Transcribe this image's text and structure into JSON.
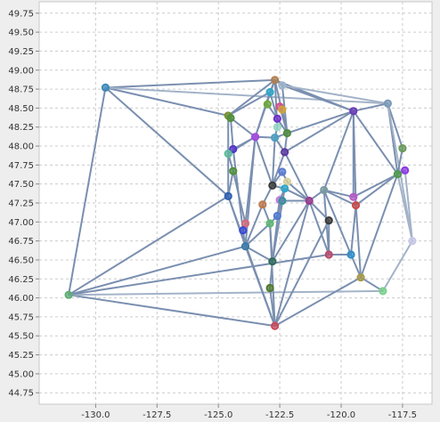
{
  "chart_data": {
    "type": "scatter",
    "title": "",
    "xlabel": "",
    "ylabel": "",
    "xlim": [
      -132.3,
      -116.3
    ],
    "ylim": [
      44.6,
      49.9
    ],
    "x_ticks": [
      -130.0,
      -127.5,
      -125.0,
      -122.5,
      -120.0,
      -117.5
    ],
    "x_tick_labels": [
      "-130.0",
      "-127.5",
      "-125.0",
      "-122.5",
      "-120.0",
      "-117.5"
    ],
    "y_ticks": [
      49.75,
      49.5,
      49.25,
      49.0,
      48.75,
      48.5,
      48.25,
      48.0,
      47.75,
      47.5,
      47.25,
      47.0,
      46.75,
      46.5,
      46.25,
      46.0,
      45.75,
      45.5,
      45.25,
      45.0,
      44.75
    ],
    "y_tick_labels": [
      "49.75",
      "49.50",
      "49.25",
      "49.00",
      "48.75",
      "48.50",
      "48.25",
      "48.00",
      "47.75",
      "47.50",
      "47.25",
      "47.00",
      "46.75",
      "46.50",
      "46.25",
      "46.00",
      "45.75",
      "45.50",
      "45.25",
      "45.00",
      "44.75"
    ],
    "grid": true,
    "plot_background": "#ffffff",
    "page_background": "#eeeeee",
    "edge_color": "#7a8fb0",
    "edge_color_light": "#a3b3c8",
    "points": [
      {
        "x": -129.6,
        "y": 48.77,
        "color": "#3b88b8"
      },
      {
        "x": -131.1,
        "y": 46.04,
        "color": "#5fae74"
      },
      {
        "x": -122.7,
        "y": 48.87,
        "color": "#b07f4e"
      },
      {
        "x": -122.4,
        "y": 48.8,
        "color": "#9cb4cc"
      },
      {
        "x": -122.9,
        "y": 48.71,
        "color": "#2fa6c7"
      },
      {
        "x": -123.0,
        "y": 48.55,
        "color": "#6fa838"
      },
      {
        "x": -122.5,
        "y": 48.52,
        "color": "#d24f8f"
      },
      {
        "x": -122.4,
        "y": 48.48,
        "color": "#d0a33a"
      },
      {
        "x": -122.6,
        "y": 48.36,
        "color": "#6e2fc8"
      },
      {
        "x": -122.6,
        "y": 48.25,
        "color": "#97d8c5"
      },
      {
        "x": -122.2,
        "y": 48.17,
        "color": "#4f8a3d"
      },
      {
        "x": -122.7,
        "y": 48.11,
        "color": "#4da0c2"
      },
      {
        "x": -123.5,
        "y": 48.12,
        "color": "#a545e0"
      },
      {
        "x": -124.6,
        "y": 48.4,
        "color": "#7b8f2e"
      },
      {
        "x": -124.5,
        "y": 48.37,
        "color": "#4f8f3b"
      },
      {
        "x": -124.4,
        "y": 47.96,
        "color": "#5434c8"
      },
      {
        "x": -124.6,
        "y": 47.9,
        "color": "#5dba9c"
      },
      {
        "x": -124.4,
        "y": 47.67,
        "color": "#4f8f3b"
      },
      {
        "x": -124.6,
        "y": 47.34,
        "color": "#2f5fb0"
      },
      {
        "x": -122.3,
        "y": 47.92,
        "color": "#5c3aa0"
      },
      {
        "x": -122.4,
        "y": 47.66,
        "color": "#5a7bd0"
      },
      {
        "x": -122.2,
        "y": 47.53,
        "color": "#d8d09a"
      },
      {
        "x": -122.8,
        "y": 47.48,
        "color": "#3a3a3a"
      },
      {
        "x": -122.3,
        "y": 47.44,
        "color": "#2fa6c7"
      },
      {
        "x": -122.5,
        "y": 47.29,
        "color": "#c07ae0"
      },
      {
        "x": -122.4,
        "y": 47.28,
        "color": "#3a8f9a"
      },
      {
        "x": -121.3,
        "y": 47.28,
        "color": "#9a3a8f"
      },
      {
        "x": -123.2,
        "y": 47.23,
        "color": "#c07a4e"
      },
      {
        "x": -122.6,
        "y": 47.08,
        "color": "#4f7ad0"
      },
      {
        "x": -122.9,
        "y": 46.98,
        "color": "#5fb874"
      },
      {
        "x": -123.9,
        "y": 46.98,
        "color": "#d46a7a"
      },
      {
        "x": -124.0,
        "y": 46.89,
        "color": "#3a4ad0"
      },
      {
        "x": -123.9,
        "y": 46.68,
        "color": "#3a7aa8"
      },
      {
        "x": -120.5,
        "y": 47.02,
        "color": "#3a3a3a"
      },
      {
        "x": -120.7,
        "y": 47.42,
        "color": "#7a9aa0"
      },
      {
        "x": -119.5,
        "y": 47.33,
        "color": "#b85ac8"
      },
      {
        "x": -119.4,
        "y": 47.22,
        "color": "#c84a4a"
      },
      {
        "x": -120.5,
        "y": 46.57,
        "color": "#b84a6a"
      },
      {
        "x": -119.6,
        "y": 46.57,
        "color": "#2f8fc8"
      },
      {
        "x": -119.2,
        "y": 46.27,
        "color": "#a89a4a"
      },
      {
        "x": -119.5,
        "y": 48.46,
        "color": "#6a3ab8"
      },
      {
        "x": -118.1,
        "y": 48.56,
        "color": "#7a9ab8"
      },
      {
        "x": -117.5,
        "y": 47.97,
        "color": "#6a9a5a"
      },
      {
        "x": -117.7,
        "y": 47.63,
        "color": "#4f9a4a"
      },
      {
        "x": -117.4,
        "y": 47.68,
        "color": "#8a3ae0"
      },
      {
        "x": -117.1,
        "y": 46.75,
        "color": "#c8c8e8"
      },
      {
        "x": -118.3,
        "y": 46.09,
        "color": "#7ad08a"
      },
      {
        "x": -122.8,
        "y": 46.48,
        "color": "#2f6a5a"
      },
      {
        "x": -122.9,
        "y": 46.13,
        "color": "#4f7a2e"
      },
      {
        "x": -122.7,
        "y": 45.63,
        "color": "#c84a5a"
      }
    ],
    "edges": [
      [
        0,
        1
      ],
      [
        0,
        2
      ],
      [
        0,
        13
      ],
      [
        0,
        18
      ],
      [
        0,
        41
      ],
      [
        1,
        18
      ],
      [
        1,
        32
      ],
      [
        1,
        49
      ],
      [
        1,
        46
      ],
      [
        1,
        37
      ],
      [
        2,
        3
      ],
      [
        2,
        4
      ],
      [
        2,
        12
      ],
      [
        2,
        13
      ],
      [
        2,
        10
      ],
      [
        2,
        40
      ],
      [
        3,
        40
      ],
      [
        3,
        41
      ],
      [
        3,
        10
      ],
      [
        4,
        13
      ],
      [
        4,
        8
      ],
      [
        4,
        12
      ],
      [
        13,
        14
      ],
      [
        14,
        12
      ],
      [
        14,
        15
      ],
      [
        13,
        16
      ],
      [
        16,
        17
      ],
      [
        16,
        18
      ],
      [
        17,
        18
      ],
      [
        15,
        12
      ],
      [
        12,
        11
      ],
      [
        12,
        22
      ],
      [
        12,
        30
      ],
      [
        12,
        32
      ],
      [
        11,
        19
      ],
      [
        11,
        22
      ],
      [
        11,
        10
      ],
      [
        10,
        19
      ],
      [
        10,
        40
      ],
      [
        19,
        40
      ],
      [
        19,
        26
      ],
      [
        19,
        22
      ],
      [
        20,
        21
      ],
      [
        20,
        22
      ],
      [
        21,
        26
      ],
      [
        23,
        26
      ],
      [
        24,
        28
      ],
      [
        25,
        26
      ],
      [
        26,
        34
      ],
      [
        26,
        33
      ],
      [
        26,
        47
      ],
      [
        26,
        37
      ],
      [
        26,
        49
      ],
      [
        22,
        27
      ],
      [
        27,
        32
      ],
      [
        27,
        29
      ],
      [
        28,
        29
      ],
      [
        29,
        32
      ],
      [
        29,
        47
      ],
      [
        30,
        31
      ],
      [
        31,
        32
      ],
      [
        32,
        47
      ],
      [
        32,
        49
      ],
      [
        47,
        48
      ],
      [
        48,
        49
      ],
      [
        47,
        23
      ],
      [
        34,
        40
      ],
      [
        34,
        35
      ],
      [
        34,
        36
      ],
      [
        34,
        38
      ],
      [
        34,
        37
      ],
      [
        35,
        40
      ],
      [
        36,
        40
      ],
      [
        36,
        38
      ],
      [
        36,
        39
      ],
      [
        35,
        43
      ],
      [
        40,
        41
      ],
      [
        40,
        43
      ],
      [
        41,
        42
      ],
      [
        41,
        43
      ],
      [
        41,
        45
      ],
      [
        42,
        43
      ],
      [
        43,
        44
      ],
      [
        43,
        36
      ],
      [
        44,
        45
      ],
      [
        43,
        45
      ],
      [
        43,
        39
      ],
      [
        39,
        46
      ],
      [
        45,
        46
      ],
      [
        38,
        39
      ],
      [
        39,
        49
      ],
      [
        37,
        38
      ],
      [
        37,
        33
      ],
      [
        33,
        49
      ],
      [
        18,
        32
      ],
      [
        18,
        49
      ],
      [
        17,
        30
      ],
      [
        15,
        31
      ],
      [
        16,
        12
      ],
      [
        22,
        23
      ],
      [
        24,
        23
      ],
      [
        28,
        25
      ],
      [
        6,
        10
      ],
      [
        8,
        10
      ],
      [
        9,
        11
      ],
      [
        5,
        8
      ],
      [
        7,
        10
      ],
      [
        2,
        9
      ],
      [
        29,
        49
      ],
      [
        24,
        47
      ]
    ]
  }
}
